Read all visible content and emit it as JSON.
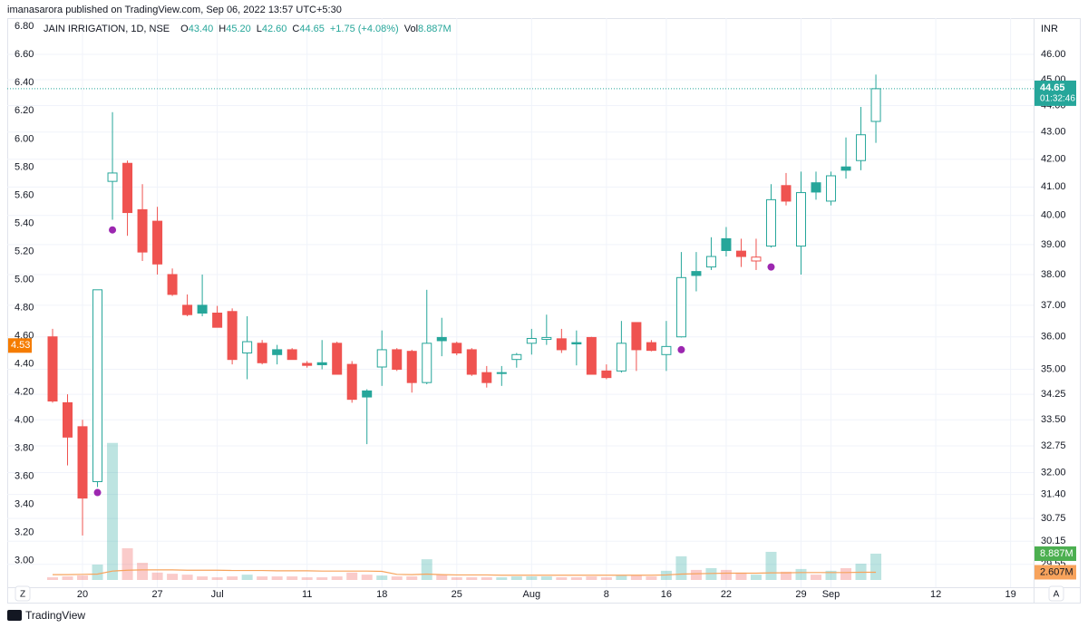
{
  "header": {
    "publisher": "imanasarora published on TradingView.com, Sep 06, 2022 13:57 UTC+5:30"
  },
  "footer": {
    "brand": "TradingView"
  },
  "buttons": [
    "Z",
    "A"
  ],
  "chart_data": {
    "type": "candlestick",
    "title": "JAIN IRRIGATION, 1D, NSE",
    "currency": "INR",
    "legend": {
      "items": [
        {
          "label": "O",
          "value": "43.40"
        },
        {
          "label": "H",
          "value": "45.20"
        },
        {
          "label": "L",
          "value": "42.60"
        },
        {
          "label": "C",
          "value": "44.65"
        }
      ],
      "change": "+1.75 (+4.08%)",
      "volume_label": "Vol",
      "volume_value": "8.887M"
    },
    "x": [
      "2022-06-16",
      "2022-06-17",
      "2022-06-20",
      "2022-06-21",
      "2022-06-22",
      "2022-06-23",
      "2022-06-24",
      "2022-06-27",
      "2022-06-28",
      "2022-06-29",
      "2022-06-30",
      "2022-07-01",
      "2022-07-04",
      "2022-07-05",
      "2022-07-06",
      "2022-07-07",
      "2022-07-08",
      "2022-07-11",
      "2022-07-12",
      "2022-07-13",
      "2022-07-14",
      "2022-07-15",
      "2022-07-18",
      "2022-07-19",
      "2022-07-20",
      "2022-07-21",
      "2022-07-22",
      "2022-07-25",
      "2022-07-26",
      "2022-07-27",
      "2022-07-28",
      "2022-07-29",
      "2022-08-01",
      "2022-08-02",
      "2022-08-03",
      "2022-08-04",
      "2022-08-05",
      "2022-08-08",
      "2022-08-10",
      "2022-08-11",
      "2022-08-12",
      "2022-08-16",
      "2022-08-17",
      "2022-08-18",
      "2022-08-19",
      "2022-08-22",
      "2022-08-23",
      "2022-08-24",
      "2022-08-25",
      "2022-08-26",
      "2022-08-29",
      "2022-08-30",
      "2022-09-01",
      "2022-09-02",
      "2022-09-05",
      "2022-09-06"
    ],
    "open": [
      36.0,
      34.0,
      33.3,
      31.75,
      41.2,
      41.85,
      40.2,
      39.8,
      38.0,
      37.0,
      37.0,
      36.75,
      36.8,
      35.5,
      35.8,
      35.6,
      35.6,
      35.18,
      35.2,
      35.8,
      35.15,
      34.35,
      35.07,
      35.6,
      35.55,
      34.6,
      35.98,
      35.8,
      35.6,
      34.9,
      34.88,
      35.3,
      35.8,
      35.92,
      35.94,
      35.82,
      35.98,
      34.95,
      34.95,
      36.45,
      35.82,
      35.45,
      36.0,
      38.1,
      38.25,
      39.2,
      38.78,
      38.45,
      38.95,
      41.05,
      38.95,
      41.15,
      40.5,
      41.72,
      41.95,
      43.4
    ],
    "high": [
      36.25,
      34.25,
      33.5,
      37.5,
      43.75,
      41.95,
      41.1,
      40.3,
      38.2,
      37.35,
      38.0,
      36.98,
      36.9,
      36.65,
      35.9,
      35.75,
      35.65,
      35.25,
      35.9,
      35.85,
      35.25,
      34.4,
      36.2,
      35.65,
      35.6,
      37.5,
      36.6,
      35.85,
      35.65,
      35.1,
      35.1,
      35.5,
      36.25,
      36.7,
      36.25,
      36.2,
      36.0,
      35.15,
      36.5,
      36.45,
      35.9,
      36.5,
      38.75,
      38.75,
      39.25,
      39.6,
      39.2,
      39.2,
      41.1,
      41.5,
      41.55,
      41.55,
      41.55,
      42.8,
      43.95,
      45.2
    ],
    "low": [
      34.0,
      32.2,
      30.3,
      31.6,
      39.85,
      39.3,
      38.45,
      38.0,
      37.3,
      36.65,
      36.65,
      36.3,
      35.15,
      34.7,
      35.15,
      35.15,
      35.3,
      35.05,
      35.0,
      34.85,
      34.0,
      32.8,
      34.5,
      34.95,
      34.3,
      34.55,
      35.4,
      35.43,
      34.8,
      34.45,
      34.5,
      35.05,
      35.45,
      35.75,
      35.5,
      35.12,
      34.85,
      34.7,
      34.9,
      34.95,
      35.55,
      34.95,
      35.98,
      37.45,
      38.15,
      38.6,
      38.25,
      38.15,
      38.9,
      40.35,
      38.0,
      40.55,
      40.35,
      41.3,
      41.6,
      42.6
    ],
    "close": [
      34.05,
      33.0,
      31.3,
      37.5,
      41.5,
      40.1,
      38.75,
      38.35,
      37.35,
      36.7,
      36.75,
      36.3,
      35.3,
      35.85,
      35.2,
      35.45,
      35.3,
      35.12,
      35.14,
      34.85,
      34.1,
      34.17,
      35.6,
      35.0,
      34.6,
      35.8,
      35.88,
      35.5,
      34.85,
      34.6,
      34.9,
      35.45,
      35.95,
      35.98,
      35.6,
      35.78,
      34.85,
      34.75,
      35.8,
      35.6,
      35.58,
      35.7,
      37.9,
      37.97,
      38.6,
      38.8,
      38.6,
      38.58,
      40.55,
      40.5,
      40.8,
      40.82,
      41.4,
      41.6,
      42.9,
      44.65
    ],
    "volume": [
      0.9,
      1.2,
      1.5,
      5.2,
      46.3,
      10.7,
      5.8,
      2.5,
      2.1,
      1.8,
      1.2,
      0.9,
      1.2,
      1.8,
      1.2,
      1.2,
      1.2,
      0.9,
      0.9,
      1.2,
      2.5,
      1.8,
      1.5,
      1.2,
      1.2,
      7.0,
      1.8,
      0.9,
      0.9,
      0.9,
      0.9,
      1.2,
      1.2,
      1.2,
      0.9,
      0.9,
      1.2,
      0.9,
      1.5,
      1.5,
      1.2,
      3.1,
      8.0,
      3.4,
      4.0,
      3.4,
      2.5,
      1.8,
      9.5,
      2.8,
      3.7,
      1.8,
      3.1,
      4.0,
      5.5,
      8.887
    ],
    "volume_label": "8.887M",
    "volume_ma": [
      1.8,
      1.8,
      1.9,
      2.0,
      3.0,
      3.3,
      3.4,
      3.4,
      3.4,
      3.3,
      3.3,
      3.3,
      3.2,
      3.2,
      3.2,
      3.1,
      3.1,
      3.1,
      3.0,
      3.0,
      3.0,
      3.0,
      2.9,
      1.9,
      1.8,
      2.0,
      1.8,
      1.7,
      1.7,
      1.7,
      1.6,
      1.6,
      1.6,
      1.6,
      1.6,
      1.6,
      1.6,
      1.6,
      1.6,
      1.6,
      1.6,
      1.7,
      2.0,
      2.1,
      2.2,
      2.3,
      2.3,
      2.3,
      2.4,
      2.4,
      2.5,
      2.5,
      2.5,
      2.5,
      2.6,
      2.607
    ],
    "volume_ma_label": "2.607M",
    "vlim": [
      0,
      60
    ],
    "countdown": "01:32:46",
    "markers": {
      "color": "#9c27b0",
      "x": [
        "2022-06-21",
        "2022-06-22",
        "2022-08-17",
        "2022-08-25"
      ],
      "values": [
        31.45,
        39.5,
        35.6,
        38.25
      ]
    },
    "up_color": "#26a69a",
    "down_color": "#ef5350",
    "ma_color": "#f7a35c",
    "log_scale": true,
    "ylim": [
      28.97,
      47.47
    ],
    "yticks": [
      {
        "value": 46,
        "label": "46.00"
      },
      {
        "value": 45,
        "label": "45.00"
      },
      {
        "value": 44,
        "label": "44.00"
      },
      {
        "value": 43,
        "label": "43.00"
      },
      {
        "value": 42,
        "label": "42.00"
      },
      {
        "value": 41,
        "label": "41.00"
      },
      {
        "value": 40,
        "label": "40.00"
      },
      {
        "value": 39,
        "label": "39.00"
      },
      {
        "value": 38,
        "label": "38.00"
      },
      {
        "value": 37,
        "label": "37.00"
      },
      {
        "value": 36,
        "label": "36.00"
      },
      {
        "value": 35,
        "label": "35.00"
      },
      {
        "value": 34.25,
        "label": "34.25"
      },
      {
        "value": 33.5,
        "label": "33.50"
      },
      {
        "value": 32.75,
        "label": "32.75"
      },
      {
        "value": 32,
        "label": "32.00"
      },
      {
        "value": 31.4,
        "label": "31.40"
      },
      {
        "value": 30.75,
        "label": "30.75"
      },
      {
        "value": 30.15,
        "label": "30.15"
      },
      {
        "value": 29.55,
        "label": "29.55"
      }
    ],
    "y2lim": [
      2.81,
      6.86
    ],
    "y2ticks": [
      {
        "value": 6.8,
        "label": "6.80"
      },
      {
        "value": 6.6,
        "label": "6.60"
      },
      {
        "value": 6.4,
        "label": "6.40"
      },
      {
        "value": 6.2,
        "label": "6.20"
      },
      {
        "value": 6.0,
        "label": "6.00"
      },
      {
        "value": 5.8,
        "label": "5.80"
      },
      {
        "value": 5.6,
        "label": "5.60"
      },
      {
        "value": 5.4,
        "label": "5.40"
      },
      {
        "value": 5.2,
        "label": "5.20"
      },
      {
        "value": 5.0,
        "label": "5.00"
      },
      {
        "value": 4.8,
        "label": "4.80"
      },
      {
        "value": 4.6,
        "label": "4.60"
      },
      {
        "value": 4.4,
        "label": "4.40"
      },
      {
        "value": 4.2,
        "label": "4.20"
      },
      {
        "value": 4.0,
        "label": "4.00"
      },
      {
        "value": 3.8,
        "label": "3.80"
      },
      {
        "value": 3.6,
        "label": "3.60"
      },
      {
        "value": 3.4,
        "label": "3.40"
      },
      {
        "value": 3.2,
        "label": "3.20"
      },
      {
        "value": 3.0,
        "label": "3.00"
      }
    ],
    "y2_marker": 4.53,
    "xticks": [
      {
        "value": "2022-06-20",
        "label": "20"
      },
      {
        "value": "2022-06-27",
        "label": "27"
      },
      {
        "value": "2022-07-01",
        "label": "Jul"
      },
      {
        "value": "2022-07-11",
        "label": "11"
      },
      {
        "value": "2022-07-18",
        "label": "18"
      },
      {
        "value": "2022-07-25",
        "label": "25"
      },
      {
        "value": "2022-08-01",
        "label": "Aug"
      },
      {
        "value": "2022-08-08",
        "label": "8"
      },
      {
        "value": "2022-08-16",
        "label": "16"
      },
      {
        "value": "2022-08-22",
        "label": "22"
      },
      {
        "value": "2022-08-29",
        "label": "29"
      },
      {
        "value": "2022-09-01",
        "label": "Sep"
      },
      {
        "value": "2022-09-12",
        "label": "12"
      },
      {
        "value": "2022-09-19",
        "label": "19"
      }
    ],
    "grid": true
  }
}
